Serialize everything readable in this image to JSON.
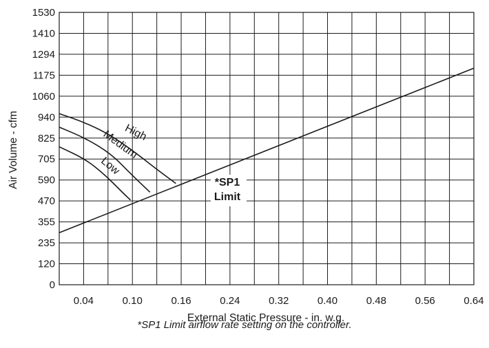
{
  "chart_data": {
    "type": "line",
    "xlabel": "External Static Pressure - in. w.g.",
    "ylabel": "Air Volume - cfm",
    "footnote": "*SP1 Limit airflow rate setting on the controller.",
    "x_tick_labels": [
      "0.04",
      "0.10",
      "0.16",
      "0.24",
      "0.32",
      "0.40",
      "0.48",
      "0.56",
      "0.64"
    ],
    "y_tick_labels": [
      "0",
      "120",
      "235",
      "355",
      "470",
      "590",
      "705",
      "825",
      "940",
      "1060",
      "1175",
      "1294",
      "1410",
      "1530"
    ],
    "xlim": [
      0.0,
      0.64
    ],
    "ylim": [
      0,
      1530
    ],
    "grid": true,
    "series": [
      {
        "name": "High",
        "x": [
          0.0,
          0.04,
          0.08,
          0.12,
          0.15,
          0.18
        ],
        "y": [
          960,
          910,
          840,
          735,
          650,
          570
        ]
      },
      {
        "name": "Medium",
        "x": [
          0.0,
          0.04,
          0.08,
          0.11,
          0.14
        ],
        "y": [
          885,
          825,
          735,
          625,
          520
        ]
      },
      {
        "name": "Low",
        "x": [
          0.0,
          0.04,
          0.07,
          0.1,
          0.11
        ],
        "y": [
          775,
          705,
          620,
          510,
          475
        ]
      },
      {
        "name": "*SP1 Limit",
        "label_lines": [
          "*SP1",
          "Limit"
        ],
        "x": [
          0.0,
          0.64
        ],
        "y": [
          293,
          1215
        ]
      }
    ]
  }
}
